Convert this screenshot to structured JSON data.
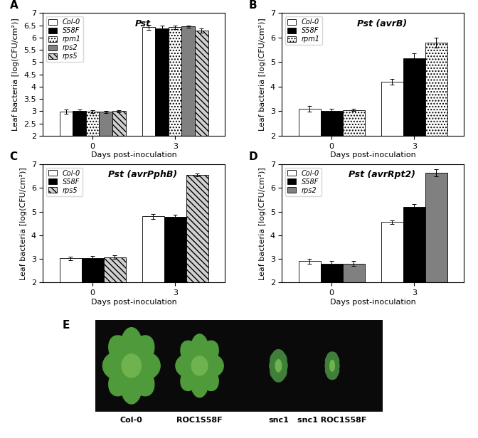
{
  "chart_data": [
    {
      "type": "bar",
      "panel": "A",
      "title": "Pst",
      "y_label": "Leaf bacteria [log(CFU/cm²)]",
      "x_label": "Days post-inoculation",
      "categories": [
        "0",
        "3"
      ],
      "ylim": [
        2,
        7
      ],
      "yticks": [
        2,
        2.5,
        3,
        3.5,
        4,
        4.5,
        5,
        5.5,
        6,
        6.5,
        7
      ],
      "legend": "upper left",
      "series": [
        {
          "name": "Col-0",
          "color": "#ffffff",
          "values": [
            2.98,
            6.42
          ],
          "errors": [
            0.08,
            0.1
          ]
        },
        {
          "name": "S58F",
          "color": "#000000",
          "values": [
            3.02,
            6.38
          ],
          "errors": [
            0.06,
            0.1
          ]
        },
        {
          "name": "rpm1",
          "color": "#ffffff",
          "line_style": "dotted",
          "values": [
            2.98,
            6.42
          ],
          "errors": [
            0.05,
            0.07
          ]
        },
        {
          "name": "rps2",
          "color": "#808080",
          "values": [
            2.97,
            6.45
          ],
          "errors": [
            0.04,
            0.05
          ]
        },
        {
          "name": "rps5",
          "color": "#d0d0d0",
          "line_style": "hatched",
          "values": [
            3.0,
            6.3
          ],
          "errors": [
            0.05,
            0.09
          ]
        }
      ]
    },
    {
      "type": "bar",
      "panel": "B",
      "title": "Pst (avrB)",
      "y_label": "Leaf bacteria [log(CFU/cm²)]",
      "x_label": "Days post-inoculation",
      "categories": [
        "0",
        "3"
      ],
      "ylim": [
        2,
        7
      ],
      "yticks": [
        2,
        3,
        4,
        5,
        6,
        7
      ],
      "legend": "upper left",
      "series": [
        {
          "name": "Col-0",
          "color": "#ffffff",
          "values": [
            3.1,
            4.2
          ],
          "errors": [
            0.12,
            0.12
          ]
        },
        {
          "name": "S58F",
          "color": "#000000",
          "values": [
            3.0,
            5.15
          ],
          "errors": [
            0.1,
            0.22
          ]
        },
        {
          "name": "rpm1",
          "color": "#ffffff",
          "line_style": "dotted",
          "values": [
            3.05,
            5.8
          ],
          "errors": [
            0.05,
            0.2
          ]
        }
      ]
    },
    {
      "type": "bar",
      "panel": "C",
      "title": "Pst (avrPphB)",
      "y_label": "Leaf bacteria [log(CFU/cm²)]",
      "x_label": "Days post-inoculation",
      "categories": [
        "0",
        "3"
      ],
      "ylim": [
        2,
        7
      ],
      "yticks": [
        2,
        3,
        4,
        5,
        6,
        7
      ],
      "legend": "upper left",
      "series": [
        {
          "name": "Col-0",
          "color": "#ffffff",
          "values": [
            3.02,
            4.8
          ],
          "errors": [
            0.08,
            0.1
          ]
        },
        {
          "name": "S58F",
          "color": "#000000",
          "values": [
            3.02,
            4.78
          ],
          "errors": [
            0.1,
            0.1
          ]
        },
        {
          "name": "rps5",
          "color": "#d0d0d0",
          "line_style": "hatched",
          "values": [
            3.07,
            6.55
          ],
          "errors": [
            0.07,
            0.07
          ]
        }
      ]
    },
    {
      "type": "bar",
      "panel": "D",
      "title": "Pst (avrRpt2)",
      "y_label": "Leaf bacteria [log(CFU/cm²)]",
      "x_label": "Days post-inoculation",
      "categories": [
        "0",
        "3"
      ],
      "ylim": [
        2,
        7
      ],
      "yticks": [
        2,
        3,
        4,
        5,
        6,
        7
      ],
      "legend": "upper left",
      "series": [
        {
          "name": "Col-0",
          "color": "#ffffff",
          "values": [
            2.9,
            4.55
          ],
          "errors": [
            0.1,
            0.08
          ]
        },
        {
          "name": "S58F",
          "color": "#000000",
          "values": [
            2.8,
            5.2
          ],
          "errors": [
            0.12,
            0.12
          ]
        },
        {
          "name": "rps2",
          "color": "#808080",
          "values": [
            2.8,
            6.65
          ],
          "errors": [
            0.1,
            0.15
          ]
        }
      ]
    }
  ],
  "photo_panel": {
    "panel": "E",
    "labels": [
      "Col-0",
      "ROC1S58F",
      "snc1",
      "snc1 ROC1S58F"
    ]
  }
}
